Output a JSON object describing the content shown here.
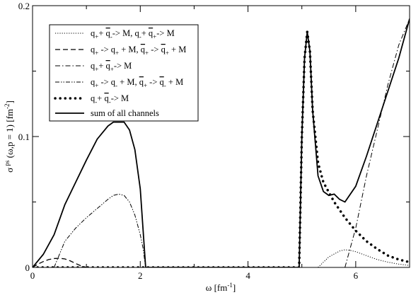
{
  "chart_data": {
    "type": "line",
    "title": "",
    "xlabel": {
      "main": "ω  [fm",
      "sup": "-1",
      "tail": "]"
    },
    "ylabel": {
      "base": "σ",
      "sup": "ps",
      "mid": " (ω,p = 1)  [fm",
      "sup2": "-2",
      "tail": "]"
    },
    "xlim": [
      0,
      7
    ],
    "ylim": [
      0,
      0.2
    ],
    "x_ticks": [
      {
        "value": 0,
        "label": "0"
      },
      {
        "value": 2,
        "label": "2"
      },
      {
        "value": 4,
        "label": "4"
      },
      {
        "value": 6,
        "label": "6"
      }
    ],
    "y_ticks": [
      {
        "value": 0,
        "label": "0"
      },
      {
        "value": 0.1,
        "label": "0.1"
      },
      {
        "value": 0.2,
        "label": "0.2"
      }
    ],
    "grid": false,
    "legend_position": "top-left",
    "series": [
      {
        "key": "q_plus_qbar_minus",
        "legend": [
          {
            "t": "q"
          },
          {
            "t": "+",
            "sub": true
          },
          {
            "t": "+ "
          },
          {
            "t": "q",
            "bar": true
          },
          {
            "t": "-",
            "sub": true
          },
          {
            "t": "-> M, q"
          },
          {
            "t": "-",
            "sub": true
          },
          {
            "t": "+ "
          },
          {
            "t": "q",
            "bar": true
          },
          {
            "t": "+",
            "sub": true
          },
          {
            "t": "-> M"
          }
        ],
        "style": "dotted",
        "x": [
          5.3,
          5.5,
          5.7,
          5.8,
          5.9,
          6.0,
          6.2,
          6.4,
          6.6,
          6.8,
          7.0
        ],
        "y": [
          0.0,
          0.008,
          0.0125,
          0.0135,
          0.013,
          0.012,
          0.009,
          0.006,
          0.004,
          0.0025,
          0.0015
        ]
      },
      {
        "key": "q_plus_to_q_plus_M",
        "legend": [
          {
            "t": "q"
          },
          {
            "t": "+",
            "sub": true
          },
          {
            "t": " -> q"
          },
          {
            "t": "+",
            "sub": true
          },
          {
            "t": " + M, "
          },
          {
            "t": "q",
            "bar": true
          },
          {
            "t": "+",
            "sub": true
          },
          {
            "t": " -> "
          },
          {
            "t": "q",
            "bar": true
          },
          {
            "t": "+",
            "sub": true
          },
          {
            "t": " + M"
          }
        ],
        "style": "dashed",
        "x": [
          0,
          0.1,
          0.2,
          0.3,
          0.4,
          0.5,
          0.6,
          0.7,
          0.8,
          0.9,
          1.0
        ],
        "y": [
          0,
          0.0025,
          0.0045,
          0.006,
          0.0068,
          0.007,
          0.0065,
          0.005,
          0.003,
          0.0012,
          0.0
        ]
      },
      {
        "key": "q_plus_qbar_plus",
        "legend": [
          {
            "t": "q"
          },
          {
            "t": "+",
            "sub": true
          },
          {
            "t": "+ "
          },
          {
            "t": "q",
            "bar": true
          },
          {
            "t": "+",
            "sub": true
          },
          {
            "t": "-> M"
          }
        ],
        "style": "dashdot",
        "x": [
          5.8,
          6.0,
          6.2,
          6.4,
          6.6,
          6.8,
          7.0
        ],
        "y": [
          0.0,
          0.03,
          0.07,
          0.105,
          0.14,
          0.17,
          0.19
        ]
      },
      {
        "key": "q_plus_to_q_minus_M",
        "legend": [
          {
            "t": "q"
          },
          {
            "t": "+",
            "sub": true
          },
          {
            "t": " -> q"
          },
          {
            "t": "-",
            "sub": true
          },
          {
            "t": " + M, "
          },
          {
            "t": "q",
            "bar": true
          },
          {
            "t": "+",
            "sub": true
          },
          {
            "t": " -> "
          },
          {
            "t": "q",
            "bar": true
          },
          {
            "t": "-",
            "sub": true
          },
          {
            "t": " + M"
          }
        ],
        "style": "dashdotdot",
        "x": [
          0.4,
          0.6,
          0.8,
          1.0,
          1.2,
          1.4,
          1.5,
          1.6,
          1.7,
          1.8,
          1.9,
          2.0,
          2.05,
          2.1
        ],
        "y": [
          0.0,
          0.02,
          0.03,
          0.038,
          0.045,
          0.052,
          0.055,
          0.056,
          0.055,
          0.05,
          0.04,
          0.025,
          0.015,
          0.0
        ]
      },
      {
        "key": "q_minus_qbar_minus",
        "legend": [
          {
            "t": "q"
          },
          {
            "t": "-",
            "sub": true
          },
          {
            "t": "+ "
          },
          {
            "t": "q",
            "bar": true
          },
          {
            "t": "-",
            "sub": true
          },
          {
            "t": "-> M"
          }
        ],
        "style": "thickdot",
        "x": [
          0,
          0.25,
          0.5,
          0.75,
          1.0,
          1.25,
          1.5,
          1.75,
          2.0,
          2.25,
          2.5,
          2.75,
          3.0,
          3.25,
          3.5,
          3.75,
          4.0,
          4.25,
          4.5,
          4.75,
          4.95,
          5.0,
          5.05,
          5.1,
          5.15,
          5.2,
          5.3,
          5.4,
          5.6,
          5.8,
          6.0,
          6.2,
          6.4,
          6.6,
          6.8,
          7.0
        ],
        "y": [
          0,
          0,
          0,
          0,
          0,
          0,
          0,
          0,
          0,
          0,
          0,
          0,
          0,
          0,
          0,
          0,
          0,
          0,
          0,
          0,
          0,
          0.1,
          0.16,
          0.18,
          0.165,
          0.12,
          0.08,
          0.065,
          0.05,
          0.038,
          0.028,
          0.02,
          0.014,
          0.009,
          0.006,
          0.004
        ]
      },
      {
        "key": "sum",
        "legend": [
          {
            "t": "sum of all channels"
          }
        ],
        "style": "solid",
        "x": [
          0,
          0.2,
          0.4,
          0.6,
          0.8,
          1.0,
          1.2,
          1.4,
          1.5,
          1.6,
          1.7,
          1.8,
          1.9,
          2.0,
          2.05,
          2.1,
          2.2,
          3.0,
          4.0,
          4.95,
          5.0,
          5.05,
          5.1,
          5.15,
          5.2,
          5.3,
          5.4,
          5.5,
          5.6,
          5.7,
          5.8,
          6.0,
          6.2,
          6.4,
          6.6,
          6.8,
          7.0
        ],
        "y": [
          0,
          0.01,
          0.025,
          0.048,
          0.065,
          0.082,
          0.098,
          0.108,
          0.111,
          0.111,
          0.111,
          0.105,
          0.09,
          0.06,
          0.03,
          0.0,
          0.0,
          0.0,
          0.0,
          0.0,
          0.1,
          0.16,
          0.18,
          0.165,
          0.12,
          0.07,
          0.058,
          0.055,
          0.056,
          0.052,
          0.05,
          0.062,
          0.085,
          0.11,
          0.135,
          0.16,
          0.19
        ]
      }
    ]
  }
}
